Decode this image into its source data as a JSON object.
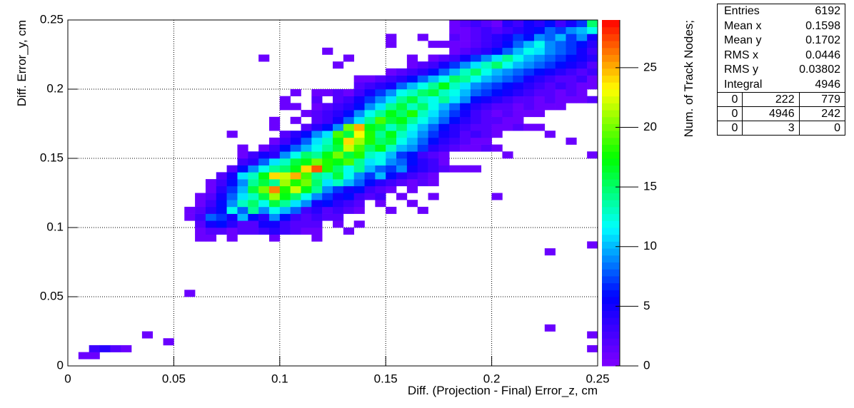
{
  "chart_data": {
    "type": "heatmap",
    "x_label": "Diff. (Projection - Final) Error_z, cm",
    "y_label": "Diff. Error_y, cm",
    "z_label": "Num. of Track Nodes;",
    "xlim": [
      0,
      0.25
    ],
    "ylim": [
      0,
      0.25
    ],
    "zlim": [
      0,
      29
    ],
    "xticks": [
      0,
      0.05,
      0.1,
      0.15,
      0.2,
      0.25
    ],
    "yticks": [
      0,
      0.05,
      0.1,
      0.15,
      0.2,
      0.25
    ],
    "zticks": [
      0,
      5,
      10,
      15,
      20,
      25
    ],
    "grid": true,
    "bin_width": 0.005,
    "bin_height": 0.005,
    "colorscale": [
      "#8000ff",
      "#0000ff",
      "#00ffff",
      "#00ff00",
      "#ffff00",
      "#ff0000"
    ],
    "rows": [
      {
        "y": 0.005,
        "x": 0.005,
        "values": [
          1,
          1
        ]
      },
      {
        "y": 0.01,
        "x": 0.01,
        "values": [
          3,
          4,
          2,
          1
        ]
      },
      {
        "y": 0.01,
        "x": 0.245,
        "values": [
          1
        ]
      },
      {
        "y": 0.015,
        "x": 0.045,
        "values": [
          1
        ]
      },
      {
        "y": 0.02,
        "x": 0.035,
        "values": [
          1
        ]
      },
      {
        "y": 0.02,
        "x": 0.245,
        "values": [
          1
        ]
      },
      {
        "y": 0.025,
        "x": 0.225,
        "values": [
          1
        ]
      },
      {
        "y": 0.05,
        "x": 0.055,
        "values": [
          1
        ]
      },
      {
        "y": 0.08,
        "x": 0.225,
        "values": [
          1
        ]
      },
      {
        "y": 0.085,
        "x": 0.245,
        "values": [
          1
        ]
      },
      {
        "y": 0.09,
        "x": 0.06,
        "values": [
          1,
          1,
          0,
          1,
          0,
          0,
          0,
          1,
          0,
          0,
          0,
          1
        ]
      },
      {
        "y": 0.095,
        "x": 0.06,
        "values": [
          1,
          2,
          2,
          1,
          2,
          2,
          3,
          4,
          3,
          2,
          1,
          1,
          0,
          0,
          1
        ]
      },
      {
        "y": 0.1,
        "x": 0.06,
        "values": [
          2,
          5,
          6,
          4,
          2,
          2,
          5,
          5,
          3,
          2,
          2,
          2,
          0,
          1,
          0,
          1
        ]
      },
      {
        "y": 0.105,
        "x": 0.055,
        "values": [
          1,
          3,
          8,
          7,
          5,
          10,
          6,
          4,
          9,
          6,
          3,
          2,
          3,
          2,
          2
        ]
      },
      {
        "y": 0.11,
        "x": 0.055,
        "values": [
          1,
          2,
          4,
          6,
          12,
          8,
          14,
          9,
          12,
          10,
          8,
          3,
          4,
          2,
          3,
          2,
          1,
          0,
          0,
          1,
          0,
          0,
          1
        ]
      },
      {
        "y": 0.115,
        "x": 0.06,
        "values": [
          1,
          3,
          6,
          9,
          13,
          15,
          12,
          16,
          14,
          11,
          9,
          5,
          6,
          4,
          3,
          2,
          0,
          1,
          0,
          0,
          1
        ]
      },
      {
        "y": 0.12,
        "x": 0.06,
        "values": [
          1,
          2,
          5,
          8,
          11,
          13,
          16,
          21,
          17,
          15,
          12,
          9,
          7,
          5,
          6,
          3,
          2,
          3,
          0,
          1,
          0,
          0,
          1
        ]
      },
      {
        "y": 0.12,
        "x": 0.2,
        "values": [
          1
        ]
      },
      {
        "y": 0.125,
        "x": 0.065,
        "values": [
          1,
          4,
          7,
          10,
          16,
          20,
          26,
          18,
          22,
          17,
          14,
          9,
          7,
          5,
          6,
          3,
          2,
          1,
          0,
          1
        ]
      },
      {
        "y": 0.13,
        "x": 0.065,
        "values": [
          1,
          3,
          6,
          9,
          14,
          16,
          14,
          21,
          18,
          20,
          15,
          11,
          13,
          10,
          8,
          6,
          4,
          3,
          2,
          1,
          2,
          1
        ]
      },
      {
        "y": 0.135,
        "x": 0.07,
        "values": [
          2,
          5,
          11,
          13,
          17,
          24,
          22,
          25,
          19,
          14,
          13,
          16,
          12,
          9,
          7,
          10,
          6,
          4,
          3,
          2,
          1
        ]
      },
      {
        "y": 0.14,
        "x": 0.075,
        "values": [
          2,
          6,
          9,
          12,
          14,
          15,
          17,
          24,
          27,
          18,
          15,
          12,
          14,
          10,
          8,
          7,
          9,
          5,
          4,
          3,
          2,
          1,
          1,
          1
        ]
      },
      {
        "y": 0.145,
        "x": 0.08,
        "values": [
          3,
          4,
          8,
          11,
          13,
          16,
          17,
          20,
          18,
          17,
          19,
          14,
          11,
          12,
          9,
          8,
          6,
          4,
          3,
          1
        ]
      },
      {
        "y": 0.15,
        "x": 0.08,
        "values": [
          1,
          3,
          5,
          4,
          9,
          12,
          15,
          14,
          17,
          20,
          16,
          18,
          13,
          12,
          10,
          7,
          6,
          3,
          2,
          1,
          0,
          0,
          0,
          0,
          0,
          1
        ]
      },
      {
        "y": 0.15,
        "x": 0.245,
        "values": [
          1
        ]
      },
      {
        "y": 0.155,
        "x": 0.08,
        "values": [
          1,
          0,
          1,
          3,
          6,
          8,
          10,
          12,
          14,
          16,
          22,
          19,
          15,
          17,
          13,
          10,
          9,
          7,
          4,
          3,
          2,
          1,
          1,
          2,
          1
        ]
      },
      {
        "y": 0.16,
        "x": 0.095,
        "values": [
          1,
          3,
          5,
          8,
          11,
          13,
          17,
          24,
          21,
          18,
          15,
          16,
          12,
          10,
          8,
          6,
          4,
          3,
          2,
          1,
          1
        ]
      },
      {
        "y": 0.16,
        "x": 0.235,
        "values": [
          1
        ]
      },
      {
        "y": 0.165,
        "x": 0.075,
        "values": [
          1,
          0,
          0,
          0,
          0,
          2,
          4,
          6,
          9,
          11,
          19,
          16,
          23,
          18,
          14,
          17,
          13,
          11,
          9,
          7,
          5,
          4,
          2,
          3,
          2,
          1
        ]
      },
      {
        "y": 0.165,
        "x": 0.225,
        "values": [
          1
        ]
      },
      {
        "y": 0.17,
        "x": 0.095,
        "values": [
          1,
          0,
          0,
          2,
          4,
          6,
          9,
          20,
          25,
          17,
          16,
          13,
          15,
          12,
          10,
          8,
          6,
          4,
          3,
          2,
          2,
          1,
          1,
          2,
          1,
          1
        ]
      },
      {
        "y": 0.175,
        "x": 0.095,
        "values": [
          1,
          0,
          1,
          0,
          2,
          3,
          5,
          8,
          11,
          14,
          19,
          16,
          17,
          14,
          12,
          10,
          8,
          6,
          4,
          3,
          2,
          2,
          1,
          1
        ]
      },
      {
        "y": 0.18,
        "x": 0.11,
        "values": [
          1,
          2,
          3,
          4,
          6,
          9,
          12,
          14,
          17,
          15,
          18,
          13,
          11,
          9,
          7,
          5,
          3,
          2,
          1,
          2,
          1,
          1,
          1
        ]
      },
      {
        "y": 0.185,
        "x": 0.1,
        "values": [
          1,
          1,
          0,
          1,
          2,
          3,
          4,
          6,
          9,
          11,
          14,
          16,
          13,
          15,
          12,
          10,
          8,
          6,
          4,
          3,
          2,
          2,
          1,
          2,
          1,
          1,
          1
        ]
      },
      {
        "y": 0.19,
        "x": 0.1,
        "values": [
          1,
          0,
          0,
          2,
          0,
          2,
          3,
          5,
          7,
          9,
          11,
          14,
          16,
          13,
          12,
          14,
          11,
          9,
          6,
          5,
          4,
          3,
          2,
          2,
          1,
          2,
          1,
          1,
          1,
          2
        ]
      },
      {
        "y": 0.195,
        "x": 0.105,
        "values": [
          1,
          0,
          1,
          1,
          2,
          1,
          3,
          5,
          7,
          9,
          12,
          13,
          15,
          16,
          13,
          12,
          10,
          8,
          7,
          6,
          5,
          4,
          3,
          2,
          2,
          1,
          2,
          1
        ]
      },
      {
        "y": 0.2,
        "x": 0.135,
        "values": [
          2,
          3,
          4,
          5,
          8,
          10,
          12,
          14,
          17,
          13,
          11,
          9,
          8,
          7,
          6,
          5,
          4,
          3,
          2,
          3,
          2,
          1,
          1
        ]
      },
      {
        "y": 0.205,
        "x": 0.135,
        "values": [
          1,
          1,
          2,
          3,
          4,
          6,
          8,
          10,
          12,
          15,
          14,
          12,
          10,
          9,
          8,
          7,
          5,
          4,
          3,
          2,
          2,
          3,
          1
        ]
      },
      {
        "y": 0.21,
        "x": 0.15,
        "values": [
          1,
          2,
          3,
          4,
          6,
          8,
          10,
          13,
          15,
          12,
          10,
          9,
          8,
          7,
          6,
          5,
          4,
          3,
          2,
          3
        ]
      },
      {
        "y": 0.215,
        "x": 0.125,
        "values": [
          1,
          0,
          0,
          0,
          0,
          0,
          0,
          1,
          2,
          3,
          5,
          7,
          9,
          11,
          13,
          15,
          12,
          10,
          9,
          8,
          7,
          6,
          5,
          4,
          2
        ]
      },
      {
        "y": 0.22,
        "x": 0.09,
        "values": [
          1
        ]
      },
      {
        "y": 0.22,
        "x": 0.13,
        "values": [
          1
        ]
      },
      {
        "y": 0.22,
        "x": 0.16,
        "values": [
          1,
          0,
          1,
          2,
          3,
          5,
          7,
          9,
          11,
          14,
          12,
          10,
          9,
          8,
          7,
          6,
          5,
          4
        ]
      },
      {
        "y": 0.225,
        "x": 0.12,
        "values": [
          1
        ]
      },
      {
        "y": 0.225,
        "x": 0.18,
        "values": [
          1,
          2,
          3,
          4,
          6,
          8,
          10,
          12,
          11,
          9,
          8,
          7,
          5,
          3
        ]
      },
      {
        "y": 0.23,
        "x": 0.15,
        "values": [
          1,
          0,
          0,
          0,
          1,
          1,
          1,
          1,
          2,
          3,
          4,
          6,
          8,
          10,
          12,
          9,
          8,
          7,
          6,
          4
        ]
      },
      {
        "y": 0.235,
        "x": 0.15,
        "values": [
          1,
          0,
          0,
          1,
          0,
          0,
          2,
          1,
          2,
          3,
          4,
          5,
          7,
          6,
          9,
          8,
          10,
          7,
          9,
          5
        ]
      },
      {
        "y": 0.24,
        "x": 0.18,
        "values": [
          1,
          1,
          2,
          3,
          2,
          3,
          4,
          5,
          6,
          8,
          7,
          9,
          10,
          12
        ]
      },
      {
        "y": 0.245,
        "x": 0.18,
        "values": [
          1,
          2,
          3,
          2,
          1,
          4,
          3,
          5,
          4,
          6,
          3,
          5,
          7,
          15
        ]
      }
    ]
  },
  "stats_box": {
    "entries": [
      {
        "label": "Entries",
        "value": 6192
      },
      {
        "label": "Mean x",
        "value": 0.1598
      },
      {
        "label": "Mean y",
        "value": 0.1702
      },
      {
        "label": "RMS x",
        "value": 0.0446
      },
      {
        "label": "RMS y",
        "value": 0.03802
      },
      {
        "label": "Integral",
        "value": 4946
      }
    ],
    "table": [
      [
        0,
        222,
        779
      ],
      [
        0,
        4946,
        242
      ],
      [
        0,
        3,
        0
      ]
    ]
  }
}
